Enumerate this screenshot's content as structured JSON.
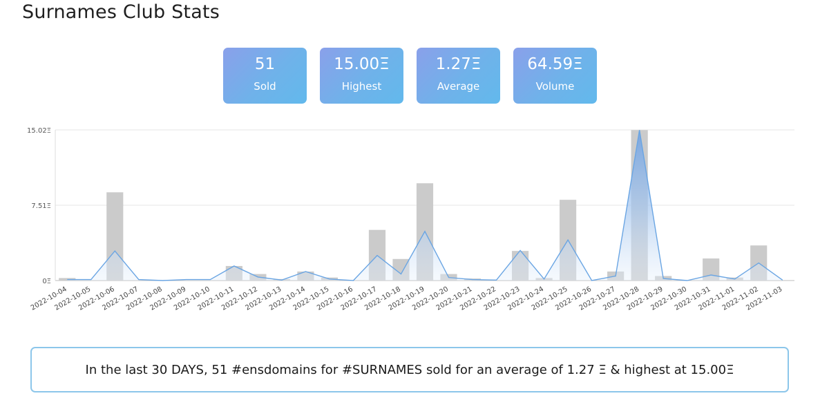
{
  "page": {
    "title": "Surnames Club Stats"
  },
  "stats": [
    {
      "value": "51",
      "label": "Sold"
    },
    {
      "value": "15.00Ξ",
      "label": "Highest"
    },
    {
      "value": "1.27Ξ",
      "label": "Average"
    },
    {
      "value": "64.59Ξ",
      "label": "Volume"
    }
  ],
  "summary": {
    "text": "In the last 30 DAYS, 51 #ensdomains for #SURNAMES sold for an average of 1.27 Ξ & highest at 15.00Ξ"
  },
  "colors": {
    "bar": "#cbcbcb",
    "line": "#6aa5e3",
    "card_gradient_start": "#8aa0ea",
    "card_gradient_end": "#62b9ec",
    "summary_border": "#8cc6ea"
  },
  "chart_data": {
    "type": "bar",
    "title": "",
    "xlabel": "",
    "ylabel": "",
    "ylim": [
      0,
      15.02
    ],
    "y_ticks": [
      "0Ξ",
      "7.51Ξ",
      "15.02Ξ"
    ],
    "grid": true,
    "categories": [
      "2022-10-04",
      "2022-10-05",
      "2022-10-06",
      "2022-10-07",
      "2022-10-08",
      "2022-10-09",
      "2022-10-10",
      "2022-10-11",
      "2022-10-12",
      "2022-10-13",
      "2022-10-14",
      "2022-10-15",
      "2022-10-16",
      "2022-10-17",
      "2022-10-18",
      "2022-10-19",
      "2022-10-20",
      "2022-10-21",
      "2022-10-22",
      "2022-10-23",
      "2022-10-24",
      "2022-10-25",
      "2022-10-26",
      "2022-10-27",
      "2022-10-28",
      "2022-10-29",
      "2022-10-30",
      "2022-10-31",
      "2022-11-01",
      "2022-11-02",
      "2022-11-03"
    ],
    "series": [
      {
        "type": "bar",
        "values": [
          0.25,
          0.0,
          8.8,
          0.0,
          0.0,
          0.0,
          0.0,
          1.45,
          0.65,
          0.15,
          0.9,
          0.3,
          0.0,
          5.05,
          2.15,
          9.7,
          0.65,
          0.2,
          0.0,
          2.95,
          0.25,
          8.05,
          0.0,
          0.9,
          15.0,
          0.45,
          0.0,
          2.2,
          0.3,
          3.5,
          0.0
        ]
      },
      {
        "type": "area",
        "values": [
          0.1,
          0.1,
          2.95,
          0.1,
          0.0,
          0.1,
          0.1,
          1.45,
          0.35,
          0.05,
          0.9,
          0.15,
          0.0,
          2.5,
          0.65,
          4.9,
          0.3,
          0.1,
          0.05,
          3.0,
          0.15,
          4.05,
          0.0,
          0.45,
          15.0,
          0.2,
          0.0,
          0.55,
          0.15,
          1.75,
          0.05
        ]
      }
    ]
  }
}
